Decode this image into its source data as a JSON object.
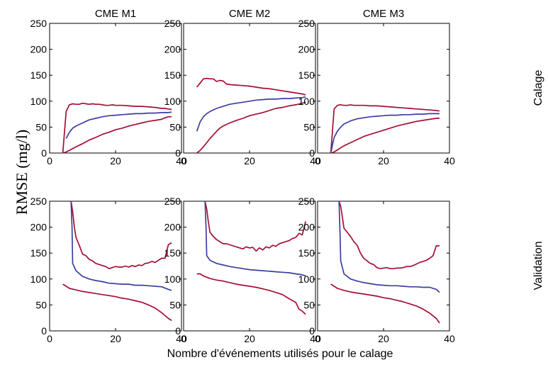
{
  "figure": {
    "ylabel": "RMSE (mg/l)",
    "xlabel": "Nombre d'événements utilisés pour le calage",
    "columns": [
      "CME M1",
      "CME M2",
      "CME M3"
    ],
    "rows": [
      "Calage",
      "Validation"
    ]
  },
  "colors": {
    "bounds": "#a50f32",
    "median": "#3b3fa0",
    "axis": "#000000"
  },
  "chart_data": [
    {
      "type": "line",
      "title": "CME M1",
      "row": "Calage",
      "xlim": [
        0,
        40
      ],
      "ylim": [
        0,
        250
      ],
      "xticks": [
        0,
        20,
        40
      ],
      "yticks": [
        0,
        50,
        100,
        150,
        200,
        250
      ],
      "series": [
        {
          "role": "upper",
          "x": [
            4,
            5,
            6,
            7,
            8,
            9,
            10,
            11,
            12,
            13,
            14,
            15,
            16,
            17,
            18,
            19,
            20,
            22,
            24,
            26,
            28,
            30,
            32,
            34,
            35,
            36,
            37
          ],
          "y": [
            0,
            80,
            93,
            95,
            94,
            94,
            96,
            95,
            94,
            95,
            94,
            94,
            93,
            92,
            92,
            93,
            92,
            92,
            91,
            90,
            90,
            89,
            88,
            86,
            86,
            85,
            84
          ]
        },
        {
          "role": "median",
          "x": [
            5,
            6,
            7,
            8,
            10,
            12,
            14,
            16,
            18,
            20,
            22,
            24,
            26,
            28,
            30,
            32,
            34,
            36,
            37
          ],
          "y": [
            28,
            40,
            48,
            52,
            58,
            64,
            67,
            70,
            72,
            73,
            74,
            75,
            76,
            76,
            77,
            77,
            78,
            78,
            79
          ]
        },
        {
          "role": "lower",
          "x": [
            4,
            5,
            6,
            8,
            10,
            12,
            14,
            16,
            18,
            20,
            22,
            24,
            26,
            28,
            30,
            32,
            34,
            35,
            36,
            37
          ],
          "y": [
            0,
            2,
            5,
            12,
            18,
            25,
            30,
            36,
            40,
            45,
            48,
            52,
            55,
            58,
            61,
            63,
            65,
            68,
            70,
            70
          ]
        }
      ]
    },
    {
      "type": "line",
      "title": "CME M2",
      "row": "Calage",
      "xlim": [
        0,
        40
      ],
      "ylim": [
        0,
        250
      ],
      "xticks": [
        0,
        20,
        40
      ],
      "yticks": [
        0,
        50,
        100,
        150,
        200,
        250
      ],
      "series": [
        {
          "role": "upper",
          "x": [
            4,
            5,
            6,
            7,
            8,
            9,
            10,
            11,
            12,
            13,
            14,
            16,
            18,
            20,
            22,
            24,
            26,
            28,
            30,
            32,
            34,
            36,
            37
          ],
          "y": [
            127,
            135,
            143,
            144,
            143,
            143,
            138,
            140,
            139,
            133,
            132,
            131,
            130,
            129,
            127,
            125,
            124,
            122,
            120,
            118,
            116,
            114,
            112
          ]
        },
        {
          "role": "median",
          "x": [
            4,
            5,
            6,
            7,
            8,
            10,
            12,
            14,
            16,
            18,
            20,
            22,
            24,
            26,
            28,
            30,
            32,
            34,
            36,
            37
          ],
          "y": [
            42,
            60,
            70,
            76,
            80,
            86,
            90,
            94,
            96,
            98,
            100,
            102,
            103,
            104,
            104,
            105,
            105,
            106,
            107,
            108
          ]
        },
        {
          "role": "lower",
          "x": [
            4,
            5,
            6,
            7,
            8,
            9,
            10,
            11,
            12,
            14,
            16,
            18,
            20,
            22,
            24,
            26,
            28,
            30,
            32,
            34,
            36,
            37
          ],
          "y": [
            0,
            5,
            12,
            20,
            28,
            35,
            42,
            48,
            52,
            58,
            63,
            67,
            72,
            75,
            78,
            82,
            86,
            88,
            91,
            93,
            96,
            98
          ]
        }
      ]
    },
    {
      "type": "line",
      "title": "CME M3",
      "row": "Calage",
      "xlim": [
        0,
        40
      ],
      "ylim": [
        0,
        250
      ],
      "xticks": [
        0,
        20,
        40
      ],
      "yticks": [
        0,
        50,
        100,
        150,
        200,
        250
      ],
      "series": [
        {
          "role": "upper",
          "x": [
            4,
            5,
            6,
            7,
            8,
            9,
            10,
            11,
            12,
            13,
            14,
            16,
            18,
            20,
            22,
            24,
            26,
            28,
            30,
            32,
            34,
            36,
            37
          ],
          "y": [
            0,
            85,
            92,
            93,
            92,
            92,
            93,
            92,
            92,
            92,
            92,
            91,
            91,
            90,
            89,
            88,
            87,
            86,
            85,
            84,
            83,
            82,
            81
          ]
        },
        {
          "role": "median",
          "x": [
            4,
            5,
            6,
            7,
            8,
            10,
            12,
            14,
            16,
            18,
            20,
            22,
            24,
            26,
            28,
            30,
            32,
            34,
            36,
            37
          ],
          "y": [
            0,
            30,
            42,
            50,
            56,
            62,
            66,
            68,
            70,
            71,
            72,
            73,
            73,
            74,
            74,
            75,
            75,
            76,
            76,
            76
          ]
        },
        {
          "role": "lower",
          "x": [
            4,
            5,
            6,
            7,
            8,
            10,
            12,
            14,
            16,
            18,
            20,
            22,
            24,
            26,
            28,
            30,
            32,
            34,
            36,
            37
          ],
          "y": [
            0,
            2,
            6,
            10,
            14,
            20,
            26,
            32,
            36,
            40,
            44,
            48,
            52,
            55,
            58,
            61,
            63,
            65,
            67,
            67
          ]
        }
      ]
    },
    {
      "type": "line",
      "title": "CME M1",
      "row": "Validation",
      "xlim": [
        0,
        40
      ],
      "ylim": [
        0,
        250
      ],
      "xticks": [
        0,
        20,
        40
      ],
      "yticks": [
        0,
        50,
        100,
        150,
        200,
        250
      ],
      "series": [
        {
          "role": "upper",
          "x": [
            6.5,
            7,
            7.5,
            8,
            9,
            10,
            11,
            12,
            13,
            14,
            15,
            16,
            17,
            18,
            19,
            20,
            21,
            22,
            23,
            24,
            25,
            26,
            27,
            28,
            29,
            30,
            31,
            32,
            33,
            34,
            35,
            36,
            37
          ],
          "y": [
            250,
            230,
            200,
            180,
            165,
            148,
            145,
            138,
            135,
            130,
            128,
            126,
            124,
            120,
            122,
            124,
            123,
            123,
            125,
            123,
            126,
            124,
            127,
            126,
            130,
            131,
            134,
            132,
            136,
            140,
            140,
            166,
            170
          ]
        },
        {
          "role": "median",
          "x": [
            6.5,
            6.8,
            7,
            8,
            10,
            12,
            14,
            16,
            18,
            20,
            22,
            24,
            26,
            28,
            30,
            32,
            34,
            36,
            37
          ],
          "y": [
            250,
            200,
            130,
            116,
            105,
            100,
            97,
            95,
            92,
            91,
            90,
            90,
            88,
            88,
            87,
            86,
            85,
            80,
            78
          ]
        },
        {
          "role": "lower",
          "x": [
            4,
            5,
            6,
            8,
            10,
            12,
            14,
            16,
            18,
            20,
            22,
            24,
            26,
            28,
            30,
            32,
            34,
            36,
            37
          ],
          "y": [
            90,
            86,
            82,
            79,
            76,
            74,
            72,
            70,
            68,
            66,
            63,
            61,
            58,
            55,
            50,
            44,
            35,
            24,
            20
          ]
        }
      ]
    },
    {
      "type": "line",
      "title": "CME M2",
      "row": "Validation",
      "xlim": [
        0,
        40
      ],
      "ylim": [
        0,
        250
      ],
      "xticks": [
        0,
        20,
        40
      ],
      "yticks": [
        0,
        50,
        100,
        150,
        200,
        250
      ],
      "series": [
        {
          "role": "upper",
          "x": [
            6.5,
            7,
            7.5,
            8,
            9,
            10,
            11,
            12,
            13,
            14,
            15,
            16,
            17,
            18,
            19,
            20,
            21,
            22,
            23,
            24,
            25,
            26,
            27,
            28,
            29,
            30,
            31,
            32,
            33,
            34,
            35,
            36,
            37
          ],
          "y": [
            250,
            235,
            210,
            190,
            182,
            176,
            172,
            168,
            168,
            166,
            164,
            162,
            160,
            158,
            162,
            160,
            161,
            154,
            160,
            156,
            162,
            160,
            165,
            163,
            168,
            170,
            172,
            174,
            178,
            180,
            188,
            185,
            211
          ]
        },
        {
          "role": "median",
          "x": [
            6.5,
            6.8,
            7,
            8,
            10,
            12,
            14,
            16,
            18,
            20,
            22,
            24,
            26,
            28,
            30,
            32,
            34,
            36,
            37
          ],
          "y": [
            250,
            200,
            145,
            136,
            130,
            127,
            124,
            122,
            120,
            118,
            117,
            116,
            115,
            114,
            113,
            112,
            110,
            108,
            106
          ]
        },
        {
          "role": "lower",
          "x": [
            4,
            5,
            6,
            8,
            10,
            12,
            14,
            16,
            18,
            20,
            22,
            24,
            26,
            28,
            30,
            32,
            34,
            35,
            36,
            37
          ],
          "y": [
            110,
            110,
            106,
            101,
            98,
            96,
            93,
            90,
            88,
            86,
            84,
            81,
            78,
            74,
            70,
            62,
            55,
            42,
            38,
            32
          ]
        }
      ]
    },
    {
      "type": "line",
      "title": "CME M3",
      "row": "Validation",
      "xlim": [
        0,
        40
      ],
      "ylim": [
        0,
        250
      ],
      "xticks": [
        0,
        20,
        40
      ],
      "yticks": [
        0,
        50,
        100,
        150,
        200,
        250
      ],
      "series": [
        {
          "role": "upper",
          "x": [
            6.5,
            7,
            7.5,
            8,
            9,
            10,
            11,
            12,
            13,
            14,
            15,
            16,
            17,
            18,
            19,
            20,
            21,
            22,
            23,
            24,
            25,
            26,
            27,
            28,
            29,
            30,
            31,
            32,
            33,
            34,
            35,
            36,
            37
          ],
          "y": [
            250,
            240,
            220,
            198,
            190,
            182,
            172,
            165,
            150,
            140,
            135,
            130,
            128,
            122,
            120,
            121,
            122,
            120,
            120,
            121,
            121,
            122,
            124,
            124,
            126,
            129,
            132,
            134,
            136,
            140,
            145,
            164,
            164
          ]
        },
        {
          "role": "median",
          "x": [
            6.5,
            6.8,
            7,
            8,
            10,
            12,
            14,
            16,
            18,
            20,
            22,
            24,
            26,
            28,
            30,
            32,
            34,
            36,
            37
          ],
          "y": [
            250,
            190,
            135,
            110,
            100,
            96,
            93,
            91,
            89,
            88,
            87,
            87,
            86,
            85,
            85,
            84,
            84,
            80,
            74
          ]
        },
        {
          "role": "lower",
          "x": [
            4,
            5,
            6,
            8,
            10,
            12,
            14,
            16,
            18,
            20,
            22,
            24,
            26,
            28,
            30,
            32,
            34,
            36,
            37
          ],
          "y": [
            90,
            86,
            82,
            78,
            75,
            73,
            71,
            69,
            67,
            64,
            62,
            59,
            56,
            52,
            48,
            42,
            34,
            24,
            15
          ]
        }
      ]
    }
  ]
}
